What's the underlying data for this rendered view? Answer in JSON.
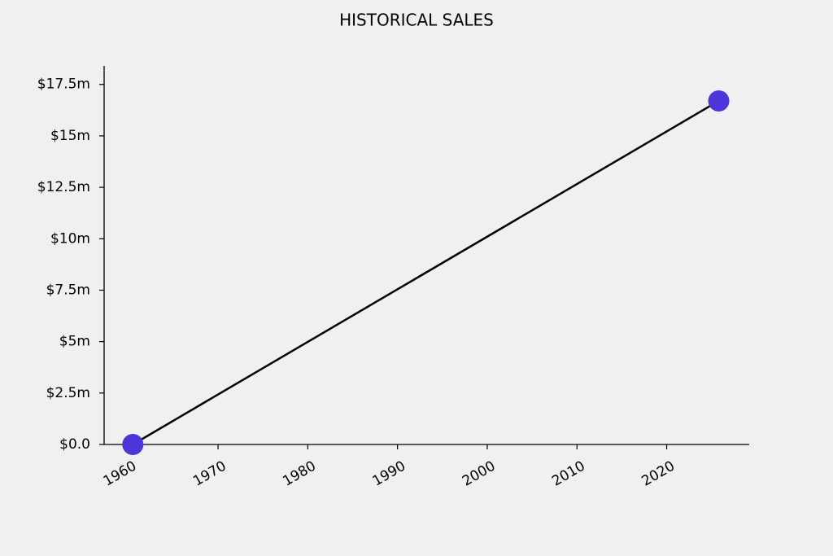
{
  "chart_data": {
    "type": "line",
    "title": "HISTORICAL SALES",
    "x": [
      1960.5,
      2025.8
    ],
    "values": [
      0,
      16.7
    ],
    "color": "#4b35db",
    "line_color": "#000000",
    "xlim": [
      1957.3,
      2029.2
    ],
    "xticks": [
      1960,
      1970,
      1980,
      1990,
      2000,
      2010,
      2020
    ],
    "ylim": [
      0,
      18.4
    ],
    "yticks": [
      {
        "value": 0,
        "label": "$0.0"
      },
      {
        "value": 2.5,
        "label": "$2.5m"
      },
      {
        "value": 5,
        "label": "$5m"
      },
      {
        "value": 7.5,
        "label": "$7.5m"
      },
      {
        "value": 10,
        "label": "$10m"
      },
      {
        "value": 12.5,
        "label": "$12.5m"
      },
      {
        "value": 15,
        "label": "$15m"
      },
      {
        "value": 17.5,
        "label": "$17.5m"
      }
    ]
  }
}
